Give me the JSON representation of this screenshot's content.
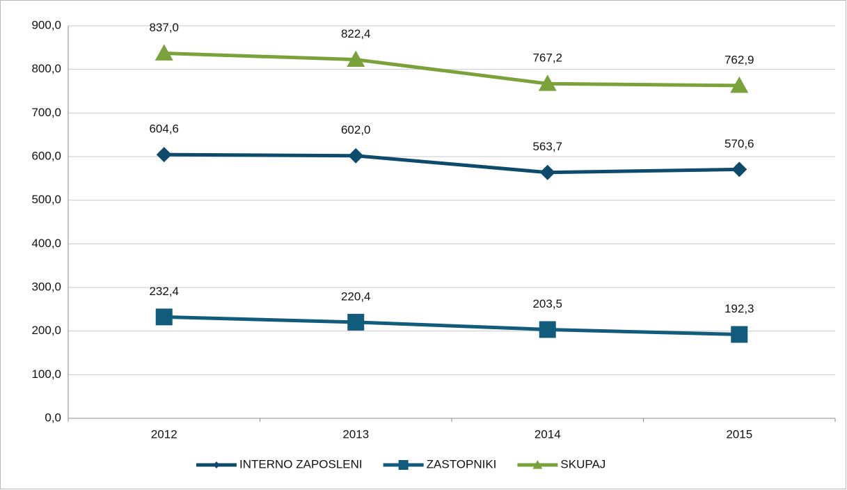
{
  "chart_data": {
    "type": "line",
    "categories": [
      "2012",
      "2013",
      "2014",
      "2015"
    ],
    "series": [
      {
        "name": "INTERNO ZAPOSLENI",
        "color": "#0d4a6b",
        "marker": "diamond",
        "values": [
          604.6,
          602.0,
          563.7,
          570.6
        ],
        "value_labels": [
          "604,6",
          "602,0",
          "563,7",
          "570,6"
        ]
      },
      {
        "name": "ZASTOPNIKI",
        "color": "#115b7d",
        "marker": "square",
        "values": [
          232.4,
          220.4,
          203.5,
          192.3
        ],
        "value_labels": [
          "232,4",
          "220,4",
          "203,5",
          "192,3"
        ]
      },
      {
        "name": "SKUPAJ",
        "color": "#7aa23a",
        "marker": "triangle",
        "values": [
          837.0,
          822.4,
          767.2,
          762.9
        ],
        "value_labels": [
          "837,0",
          "822,4",
          "767,2",
          "762,9"
        ]
      }
    ],
    "ylim": [
      0,
      900
    ],
    "yticks": [
      {
        "value": 0,
        "label": "0,0"
      },
      {
        "value": 100,
        "label": "100,0"
      },
      {
        "value": 200,
        "label": "200,0"
      },
      {
        "value": 300,
        "label": "300,0"
      },
      {
        "value": 400,
        "label": "400,0"
      },
      {
        "value": 500,
        "label": "500,0"
      },
      {
        "value": 600,
        "label": "600,0"
      },
      {
        "value": 700,
        "label": "700,0"
      },
      {
        "value": 800,
        "label": "800,0"
      },
      {
        "value": 900,
        "label": "900,0"
      }
    ],
    "grid": true,
    "legend": "bottom"
  }
}
